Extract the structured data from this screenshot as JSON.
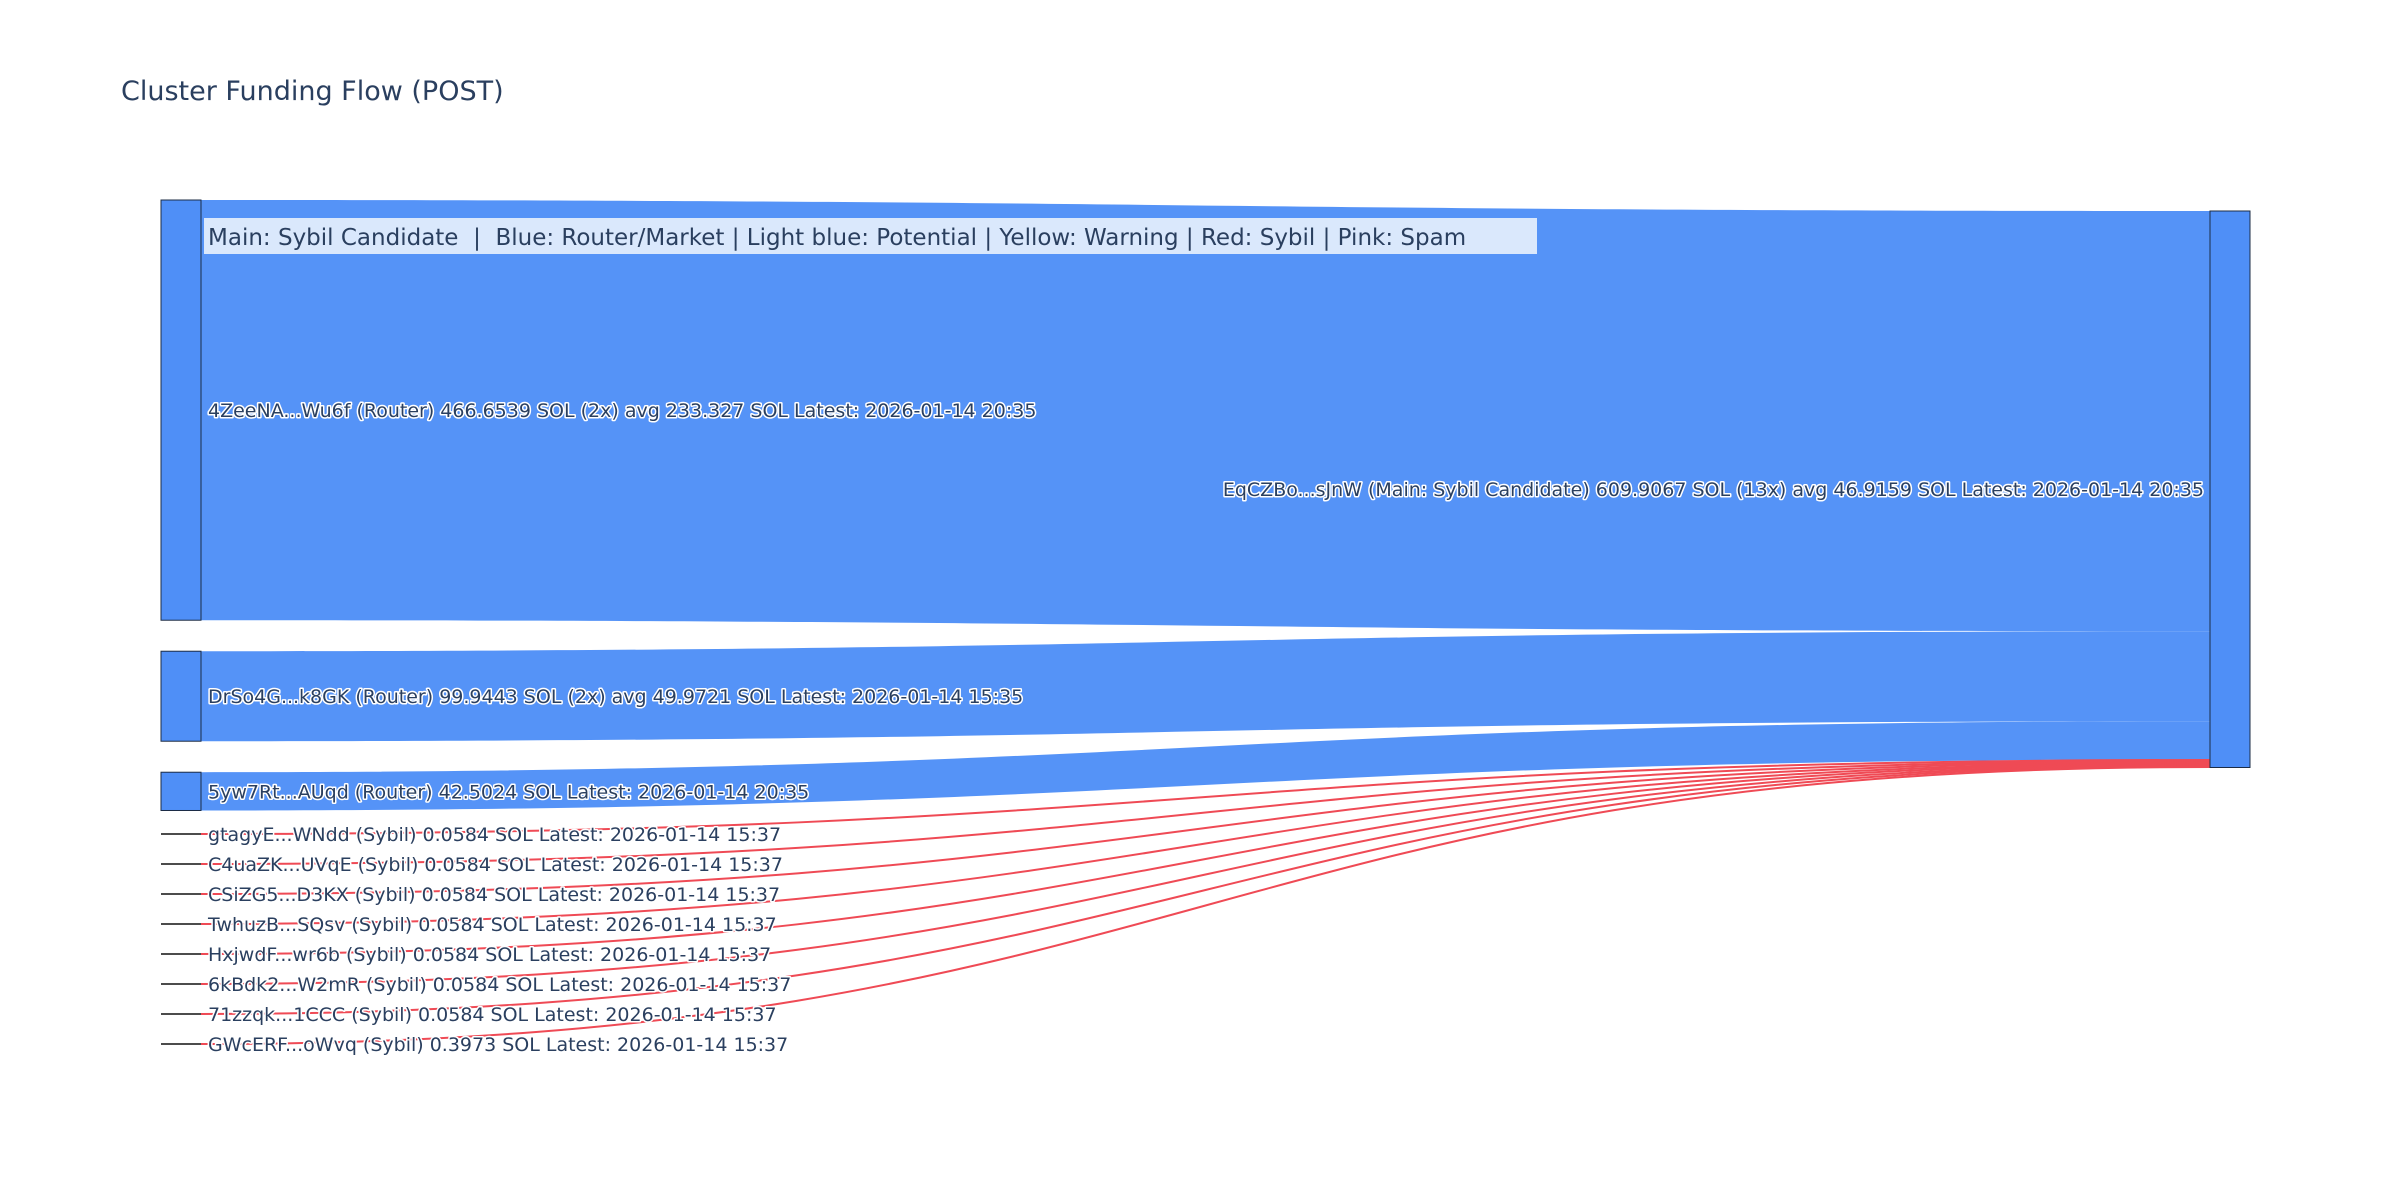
{
  "title": "Cluster Funding Flow (POST)",
  "legend": "Main: Sybil Candidate  |  Blue: Router/Market | Light blue: Potential | Yellow: Warning | Red: Sybil | Pink: Spam",
  "colors": {
    "router": "#4f8ff7",
    "sybil_link": "#ef4a55",
    "node_stroke": "#1c2c45",
    "text": "#2a3f5f"
  },
  "target": {
    "label": "EqCZBo...sJnW (Main: Sybil Candidate) 609.9067 SOL (13x) avg 46.9159 SOL Latest: 2026-01-14 20:35",
    "total_sol": 609.9067
  },
  "sources": [
    {
      "id": "router-4zee",
      "kind": "router",
      "label": "4ZeeNA...Wu6f (Router) 466.6539 SOL (2x) avg 233.327 SOL Latest: 2026-01-14 20:35",
      "sol": 466.6539
    },
    {
      "id": "router-drso",
      "kind": "router",
      "label": "DrSo4G...k8GK (Router) 99.9443 SOL (2x) avg 49.9721 SOL Latest: 2026-01-14 15:35",
      "sol": 99.9443
    },
    {
      "id": "router-5yw7",
      "kind": "router",
      "label": "5yw7Rt...AUqd (Router) 42.5024 SOL Latest: 2026-01-14 20:35",
      "sol": 42.5024
    },
    {
      "id": "sybil-gtag",
      "kind": "sybil",
      "label": "gtagyE...WNdd (Sybil) 0.0584 SOL Latest: 2026-01-14 15:37",
      "sol": 0.0584
    },
    {
      "id": "sybil-c4ua",
      "kind": "sybil",
      "label": "C4uaZK...UVqE (Sybil) 0.0584 SOL Latest: 2026-01-14 15:37",
      "sol": 0.0584
    },
    {
      "id": "sybil-csiz",
      "kind": "sybil",
      "label": "CSiZG5...D3KX (Sybil) 0.0584 SOL Latest: 2026-01-14 15:37",
      "sol": 0.0584
    },
    {
      "id": "sybil-twhu",
      "kind": "sybil",
      "label": "TwhuzB...SQsv (Sybil) 0.0584 SOL Latest: 2026-01-14 15:37",
      "sol": 0.0584
    },
    {
      "id": "sybil-hxjw",
      "kind": "sybil",
      "label": "HxjwdF...wr6b (Sybil) 0.0584 SOL Latest: 2026-01-14 15:37",
      "sol": 0.0584
    },
    {
      "id": "sybil-6kbd",
      "kind": "sybil",
      "label": "6kBdk2...W2mR (Sybil) 0.0584 SOL Latest: 2026-01-14 15:37",
      "sol": 0.0584
    },
    {
      "id": "sybil-71zz",
      "kind": "sybil",
      "label": "71zzqk...1CCC (Sybil) 0.0584 SOL Latest: 2026-01-14 15:37",
      "sol": 0.0584
    },
    {
      "id": "sybil-gwce",
      "kind": "sybil",
      "label": "GWcERF...oWvq (Sybil) 0.3973 SOL Latest: 2026-01-14 15:37",
      "sol": 0.3973
    }
  ]
}
